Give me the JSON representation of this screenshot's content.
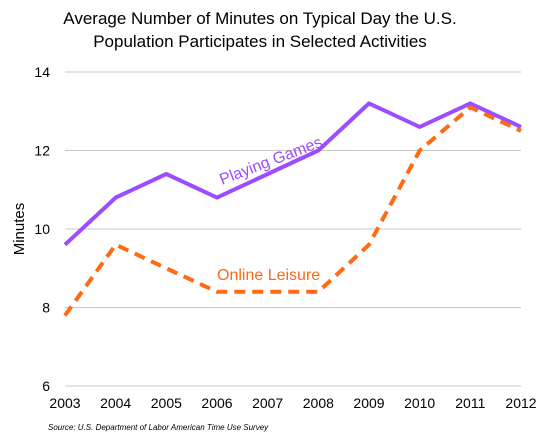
{
  "chart_data": {
    "type": "line",
    "title_lines": [
      "Average Number of Minutes on Typical Day the U.S.",
      "Population Participates in Selected Activities"
    ],
    "xlabel": "",
    "ylabel": "Minutes",
    "x": [
      "2003",
      "2004",
      "2005",
      "2006",
      "2007",
      "2008",
      "2009",
      "2010",
      "2011",
      "2012"
    ],
    "y_ticks": [
      "6",
      "8",
      "10",
      "12",
      "14"
    ],
    "ylim": [
      6,
      14
    ],
    "grid": true,
    "legend": "none",
    "series": [
      {
        "name": "Playing Games",
        "values": [
          9.6,
          10.8,
          11.4,
          10.8,
          11.4,
          12.0,
          13.2,
          12.6,
          13.2,
          12.6
        ],
        "color": "#9b4dff",
        "style": "solid"
      },
      {
        "name": "Online Leisure",
        "values": [
          7.8,
          9.6,
          9.0,
          8.4,
          8.4,
          8.4,
          9.6,
          12.0,
          13.1,
          12.5
        ],
        "color": "#ff6a13",
        "style": "dashed"
      }
    ],
    "source": "Source: U.S. Department of Labor American Time Use Survey"
  }
}
